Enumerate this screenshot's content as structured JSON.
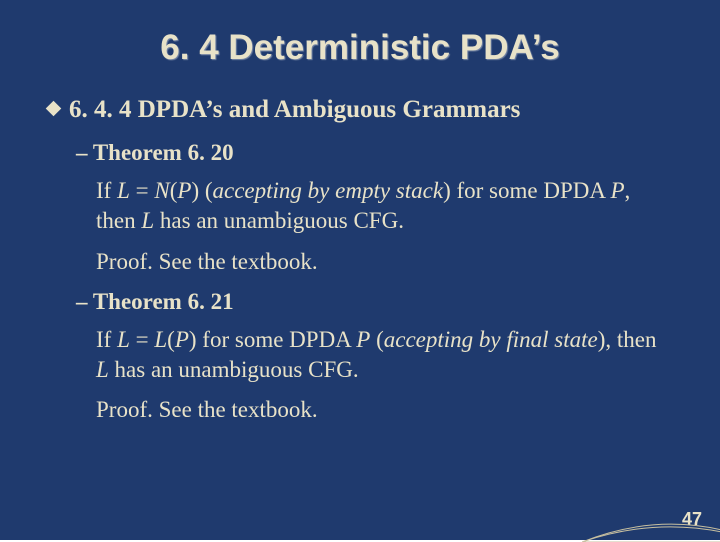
{
  "colors": {
    "background": "#1f3a6e",
    "title_color": "#e8e2c8",
    "body_color": "#e8e2c8",
    "diamond_color": "#e8e2c8",
    "page_num_color": "#e8e2c8",
    "curve_color": "#c8c0a0"
  },
  "typography": {
    "title_fontsize": 35,
    "subsection_fontsize": 25,
    "theorem_label_fontsize": 23,
    "body_fontsize": 23,
    "page_num_fontsize": 18
  },
  "title": "6. 4 Deterministic PDA’s",
  "subsection": {
    "number": "6. 4. 4",
    "text": "DPDA’s and Ambiguous Grammars"
  },
  "theorems": [
    {
      "label": "– Theorem 6. 20",
      "body_parts": [
        {
          "t": "If ",
          "i": false
        },
        {
          "t": "L",
          "i": true
        },
        {
          "t": " = ",
          "i": false
        },
        {
          "t": "N",
          "i": true
        },
        {
          "t": "(",
          "i": false
        },
        {
          "t": "P",
          "i": true
        },
        {
          "t": ") (",
          "i": false
        },
        {
          "t": "accepting by empty stack",
          "i": true
        },
        {
          "t": ") for some DPDA ",
          "i": false
        },
        {
          "t": "P",
          "i": true
        },
        {
          "t": ", then ",
          "i": false
        },
        {
          "t": "L",
          "i": true
        },
        {
          "t": " has an unambiguous CFG.",
          "i": false
        }
      ],
      "proof": "Proof. See the textbook."
    },
    {
      "label": "– Theorem 6. 21",
      "body_parts": [
        {
          "t": "If ",
          "i": false
        },
        {
          "t": "L",
          "i": true
        },
        {
          "t": " = ",
          "i": false
        },
        {
          "t": "L",
          "i": true
        },
        {
          "t": "(",
          "i": false
        },
        {
          "t": "P",
          "i": true
        },
        {
          "t": ") for some DPDA ",
          "i": false
        },
        {
          "t": "P",
          "i": true
        },
        {
          "t": " (",
          "i": false
        },
        {
          "t": "accepting by final state",
          "i": true
        },
        {
          "t": "), then ",
          "i": false
        },
        {
          "t": "L",
          "i": true
        },
        {
          "t": " has an unambiguous CFG.",
          "i": false
        }
      ],
      "proof": "Proof. See the textbook."
    }
  ],
  "page_number": "47"
}
